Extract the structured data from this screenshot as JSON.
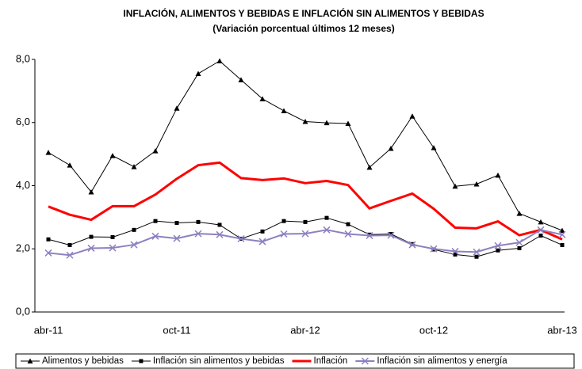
{
  "chart_data": {
    "type": "line",
    "title": "INFLACIÓN, ALIMENTOS Y BEBIDAS E INFLACIÓN SIN ALIMENTOS Y BEBIDAS",
    "subtitle": "(Variación porcentual últimos 12 meses)",
    "categories": [
      "abr-11",
      null,
      null,
      null,
      null,
      null,
      "oct-11",
      null,
      null,
      null,
      null,
      null,
      "abr-12",
      null,
      null,
      null,
      null,
      null,
      "oct-12",
      null,
      null,
      null,
      null,
      null,
      "abr-13"
    ],
    "series": [
      {
        "name": "Alimentos y bebidas",
        "color": "#000000",
        "marker": "triangle",
        "values": [
          5.05,
          4.65,
          3.8,
          4.95,
          4.6,
          5.1,
          6.45,
          7.55,
          7.95,
          7.35,
          6.75,
          6.37,
          6.03,
          5.99,
          5.97,
          4.58,
          5.18,
          6.2,
          5.2,
          3.98,
          4.05,
          4.33,
          3.12,
          2.85,
          2.58
        ]
      },
      {
        "name": "Inflación sin alimentos  y bebidas",
        "color": "#000000",
        "marker": "square",
        "values": [
          2.3,
          2.12,
          2.38,
          2.37,
          2.6,
          2.88,
          2.82,
          2.85,
          2.76,
          2.32,
          2.55,
          2.88,
          2.85,
          2.98,
          2.78,
          2.45,
          2.47,
          2.15,
          1.98,
          1.82,
          1.75,
          1.95,
          2.02,
          2.42,
          2.12
        ]
      },
      {
        "name": "Inflación",
        "color": "#ff0000",
        "marker": "none",
        "values": [
          3.34,
          3.08,
          2.92,
          3.35,
          3.35,
          3.72,
          4.22,
          4.65,
          4.73,
          4.24,
          4.18,
          4.23,
          4.08,
          4.15,
          4.02,
          3.28,
          3.52,
          3.75,
          3.27,
          2.67,
          2.65,
          2.87,
          2.43,
          2.6,
          2.3
        ]
      },
      {
        "name": "Inflación sin alimentos  y energía",
        "color": "#8e80c0",
        "marker": "x",
        "values": [
          1.87,
          1.8,
          2.02,
          2.03,
          2.13,
          2.4,
          2.33,
          2.48,
          2.45,
          2.32,
          2.23,
          2.47,
          2.48,
          2.6,
          2.47,
          2.42,
          2.43,
          2.13,
          2.0,
          1.92,
          1.9,
          2.1,
          2.2,
          2.6,
          2.45
        ]
      }
    ],
    "ylim": [
      0,
      8
    ],
    "yticks": [
      {
        "value": 0,
        "label": "0,0"
      },
      {
        "value": 2,
        "label": "2,0"
      },
      {
        "value": 4,
        "label": "4,0"
      },
      {
        "value": 6,
        "label": "6,0"
      },
      {
        "value": 8,
        "label": "8,0"
      }
    ],
    "grid": false,
    "legend": "bottom"
  }
}
